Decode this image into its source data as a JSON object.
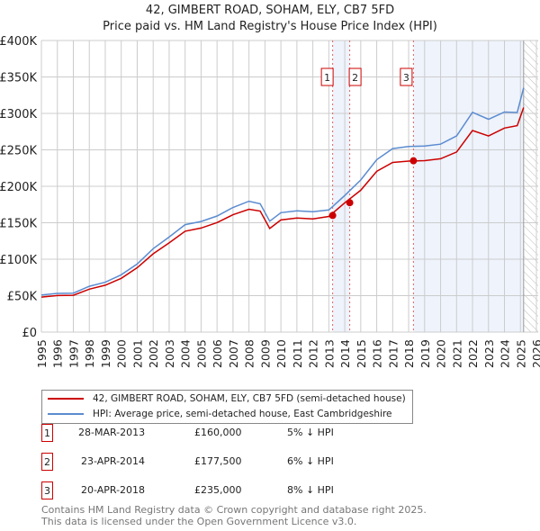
{
  "title": "42, GIMBERT ROAD, SOHAM, ELY, CB7 5FD",
  "subtitle": "Price paid vs. HM Land Registry's House Price Index (HPI)",
  "chart_data": {
    "type": "line",
    "title": "42, GIMBERT ROAD, SOHAM, ELY, CB7 5FD",
    "subtitle": "Price paid vs. HM Land Registry's House Price Index (HPI)",
    "xlim": [
      1995,
      2026
    ],
    "ylim": [
      0,
      400000
    ],
    "yticks": [
      0,
      50000,
      100000,
      150000,
      200000,
      250000,
      300000,
      350000,
      400000
    ],
    "ytick_labels": [
      "£0",
      "£50K",
      "£100K",
      "£150K",
      "£200K",
      "£250K",
      "£300K",
      "£350K",
      "£400K"
    ],
    "xticks": [
      1995,
      1996,
      1997,
      1998,
      1999,
      2000,
      2001,
      2002,
      2003,
      2004,
      2005,
      2006,
      2007,
      2008,
      2009,
      2010,
      2011,
      2012,
      2013,
      2014,
      2015,
      2016,
      2017,
      2018,
      2019,
      2020,
      2021,
      2022,
      2023,
      2024,
      2025,
      2026
    ],
    "grid": true,
    "x": [
      1995,
      1996,
      1997,
      1998,
      1999,
      2000,
      2001,
      2002,
      2003,
      2004,
      2005,
      2006,
      2007,
      2008,
      2008.7,
      2009.3,
      2010,
      2011,
      2012,
      2013,
      2014,
      2015,
      2016,
      2017,
      2018,
      2019,
      2020,
      2021,
      2022,
      2023,
      2024,
      2024.8,
      2025.2
    ],
    "series": [
      {
        "name": "42, GIMBERT ROAD, SOHAM, ELY, CB7 5FD (semi-detached house)",
        "color": "#cc0000",
        "values": [
          48000,
          49000,
          52000,
          58000,
          64000,
          75000,
          87000,
          108000,
          123000,
          137000,
          144000,
          150000,
          160000,
          170000,
          165000,
          142000,
          155000,
          155000,
          156000,
          159000,
          176000,
          196000,
          220000,
          232000,
          236000,
          234000,
          238000,
          248000,
          275000,
          270000,
          280000,
          282000,
          308000
        ]
      },
      {
        "name": "HPI: Average price, semi-detached house, East Cambridgeshire",
        "color": "#5b8bd0",
        "values": [
          51000,
          52000,
          55000,
          62000,
          68000,
          80000,
          92000,
          115000,
          131000,
          146000,
          153000,
          159000,
          170000,
          181000,
          175000,
          152000,
          165000,
          165000,
          166000,
          168000,
          186000,
          210000,
          236000,
          251000,
          256000,
          254000,
          258000,
          270000,
          300000,
          293000,
          302000,
          300000,
          335000
        ]
      }
    ],
    "sales": [
      {
        "id": "1",
        "x": 2013.24,
        "value": 160000
      },
      {
        "id": "2",
        "x": 2014.31,
        "value": 177500
      },
      {
        "id": "3",
        "x": 2018.3,
        "value": 235000
      }
    ],
    "shaded_ranges": [
      [
        2013.24,
        2014.31
      ],
      [
        2018.3,
        2025.2
      ]
    ],
    "hatched_from": 2025.2
  },
  "legend": [
    "42, GIMBERT ROAD, SOHAM, ELY, CB7 5FD (semi-detached house)",
    "HPI: Average price, semi-detached house, East Cambridgeshire"
  ],
  "table": [
    {
      "id": "1",
      "date": "28-MAR-2013",
      "price": "£160,000",
      "diff": "5% ↓ HPI"
    },
    {
      "id": "2",
      "date": "23-APR-2014",
      "price": "£177,500",
      "diff": "6% ↓ HPI"
    },
    {
      "id": "3",
      "date": "20-APR-2018",
      "price": "£235,000",
      "diff": "8% ↓ HPI"
    }
  ],
  "footer": [
    "Contains HM Land Registry data © Crown copyright and database right 2025.",
    "This data is licensed under the Open Government Licence v3.0."
  ]
}
